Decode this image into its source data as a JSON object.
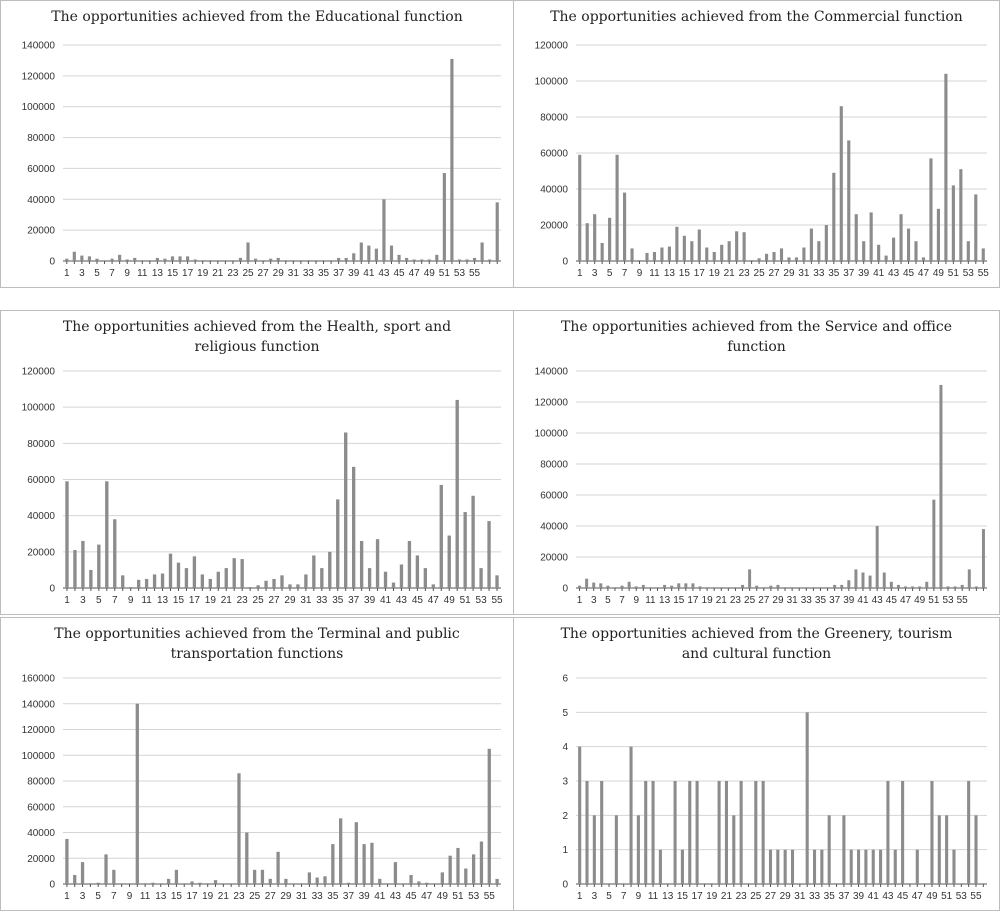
{
  "colors": {
    "bar": "#8c8c8c",
    "grid": "#d4d4d4",
    "axis": "#555555",
    "text": "#222222"
  },
  "chart_data": [
    {
      "type": "bar",
      "title": "The opportunities achieved from the Educational function",
      "ylim": [
        0,
        140000
      ],
      "yticks": [
        "0",
        "20000",
        "40000",
        "60000",
        "80000",
        "100000",
        "120000",
        "140000"
      ],
      "xticks": [
        "1",
        "3",
        "5",
        "7",
        "9",
        "11",
        "13",
        "15",
        "17",
        "19",
        "21",
        "23",
        "25",
        "27",
        "29",
        "31",
        "33",
        "35",
        "37",
        "39",
        "41",
        "43",
        "45",
        "47",
        "49",
        "51",
        "53",
        "55"
      ],
      "values": [
        1500,
        6000,
        3500,
        3000,
        1500,
        500,
        1500,
        4000,
        1000,
        2000,
        500,
        500,
        2000,
        1500,
        3000,
        3000,
        3000,
        1000,
        500,
        500,
        500,
        500,
        500,
        2000,
        12000,
        1500,
        500,
        1500,
        2000,
        500,
        500,
        500,
        500,
        500,
        500,
        500,
        2000,
        2000,
        5000,
        12000,
        10000,
        8000,
        40000,
        10000,
        4000,
        2000,
        1000,
        1000,
        1000,
        4000,
        57000,
        131000,
        1000,
        1000,
        2000,
        12000,
        1000,
        38000
      ],
      "grid": true
    },
    {
      "type": "bar",
      "title": "The opportunities achieved from the Commercial function",
      "ylim": [
        0,
        120000
      ],
      "yticks": [
        "0",
        "20000",
        "40000",
        "60000",
        "80000",
        "100000",
        "120000"
      ],
      "xticks": [
        "1",
        "3",
        "5",
        "7",
        "9",
        "11",
        "13",
        "15",
        "17",
        "19",
        "21",
        "23",
        "25",
        "27",
        "29",
        "31",
        "33",
        "35",
        "37",
        "39",
        "41",
        "43",
        "45",
        "47",
        "49",
        "51",
        "53",
        "55"
      ],
      "values": [
        59000,
        21000,
        26000,
        10000,
        24000,
        59000,
        38000,
        7000,
        500,
        4500,
        5000,
        7500,
        8000,
        19000,
        14000,
        11000,
        17500,
        7500,
        5000,
        9000,
        11000,
        16500,
        16000,
        500,
        1500,
        4000,
        5000,
        7000,
        2000,
        2000,
        7500,
        18000,
        11000,
        20000,
        49000,
        86000,
        67000,
        26000,
        11000,
        27000,
        9000,
        3000,
        13000,
        26000,
        18000,
        11000,
        2000,
        57000,
        29000,
        104000,
        42000,
        51000,
        11000,
        37000,
        7000
      ],
      "grid": true
    },
    {
      "type": "bar",
      "title": "The opportunities achieved from the Health, sport and religious function",
      "title_lines": [
        "The opportunities achieved from the Health, sport and",
        "religious function"
      ],
      "ylim": [
        0,
        120000
      ],
      "yticks": [
        "0",
        "20000",
        "40000",
        "60000",
        "80000",
        "100000",
        "120000"
      ],
      "xticks": [
        "1",
        "3",
        "5",
        "7",
        "9",
        "11",
        "13",
        "15",
        "17",
        "19",
        "21",
        "23",
        "25",
        "27",
        "29",
        "31",
        "33",
        "35",
        "37",
        "39",
        "41",
        "43",
        "45",
        "47",
        "49",
        "51",
        "53",
        "55"
      ],
      "values": [
        59000,
        21000,
        26000,
        10000,
        24000,
        59000,
        38000,
        7000,
        500,
        4500,
        5000,
        7500,
        8000,
        19000,
        14000,
        11000,
        17500,
        7500,
        5000,
        9000,
        11000,
        16500,
        16000,
        500,
        1500,
        4000,
        5000,
        7000,
        2000,
        2000,
        7500,
        18000,
        11000,
        20000,
        49000,
        86000,
        67000,
        26000,
        11000,
        27000,
        9000,
        3000,
        13000,
        26000,
        18000,
        11000,
        2000,
        57000,
        29000,
        104000,
        42000,
        51000,
        11000,
        37000,
        7000
      ],
      "grid": true
    },
    {
      "type": "bar",
      "title": "The opportunities achieved from the Service and office function",
      "title_lines": [
        "The opportunities achieved from the Service and office",
        "function"
      ],
      "ylim": [
        0,
        140000
      ],
      "yticks": [
        "0",
        "20000",
        "40000",
        "60000",
        "80000",
        "100000",
        "120000",
        "140000"
      ],
      "xticks": [
        "1",
        "3",
        "5",
        "7",
        "9",
        "11",
        "13",
        "15",
        "17",
        "19",
        "21",
        "23",
        "25",
        "27",
        "29",
        "31",
        "33",
        "35",
        "37",
        "39",
        "41",
        "43",
        "45",
        "47",
        "49",
        "51",
        "53",
        "55"
      ],
      "values": [
        1500,
        6000,
        3500,
        3000,
        1500,
        500,
        1500,
        4000,
        1000,
        2000,
        500,
        500,
        2000,
        1500,
        3000,
        3000,
        3000,
        1000,
        500,
        500,
        500,
        500,
        500,
        2000,
        12000,
        1500,
        500,
        1500,
        2000,
        500,
        500,
        500,
        500,
        500,
        500,
        500,
        2000,
        2000,
        5000,
        12000,
        10000,
        8000,
        40000,
        10000,
        4000,
        2000,
        1000,
        1000,
        1000,
        4000,
        57000,
        131000,
        1000,
        1000,
        2000,
        12000,
        1000,
        38000
      ],
      "grid": true
    },
    {
      "type": "bar",
      "title": "The opportunities achieved from the Terminal and public transportation functions",
      "title_lines": [
        "The opportunities achieved from the Terminal and public",
        "transportation functions"
      ],
      "ylim": [
        0,
        160000
      ],
      "yticks": [
        "0",
        "20000",
        "40000",
        "60000",
        "80000",
        "100000",
        "120000",
        "140000",
        "160000"
      ],
      "xticks": [
        "1",
        "3",
        "5",
        "7",
        "9",
        "11",
        "13",
        "15",
        "17",
        "19",
        "21",
        "23",
        "25",
        "27",
        "29",
        "31",
        "33",
        "35",
        "37",
        "39",
        "41",
        "43",
        "45",
        "47",
        "49",
        "51",
        "53",
        "55"
      ],
      "values": [
        35000,
        7000,
        17000,
        0,
        1000,
        23000,
        11000,
        0,
        0,
        140000,
        0,
        1000,
        0,
        4000,
        11000,
        0,
        2000,
        1000,
        0,
        3000,
        0,
        0,
        86000,
        40000,
        11000,
        11000,
        4000,
        25000,
        4000,
        0,
        0,
        9000,
        5000,
        6000,
        31000,
        51000,
        1000,
        48000,
        31000,
        32000,
        4000,
        0,
        17000,
        0,
        7000,
        2000,
        1000,
        0,
        9000,
        22000,
        28000,
        12000,
        23000,
        33000,
        105000,
        4000
      ],
      "grid": true
    },
    {
      "type": "bar",
      "title": "The opportunities achieved from the Greenery, tourism and cultural function",
      "title_lines": [
        "The opportunities achieved from the Greenery, tourism",
        "and cultural function"
      ],
      "ylim": [
        0,
        6
      ],
      "yticks": [
        "0",
        "1",
        "2",
        "3",
        "4",
        "5",
        "6"
      ],
      "xticks": [
        "1",
        "3",
        "5",
        "7",
        "9",
        "11",
        "13",
        "15",
        "17",
        "19",
        "21",
        "23",
        "25",
        "27",
        "29",
        "31",
        "33",
        "35",
        "37",
        "39",
        "41",
        "43",
        "45",
        "47",
        "49",
        "51",
        "53",
        "55"
      ],
      "values": [
        4,
        3,
        2,
        3,
        0,
        2,
        0,
        4,
        2,
        3,
        3,
        1,
        0,
        3,
        1,
        3,
        3,
        0,
        0,
        3,
        3,
        2,
        3,
        0,
        3,
        3,
        1,
        1,
        1,
        1,
        0,
        5,
        1,
        1,
        2,
        0,
        2,
        1,
        1,
        1,
        1,
        1,
        3,
        1,
        3,
        0,
        1,
        0,
        3,
        2,
        2,
        1,
        0,
        3,
        2,
        0
      ],
      "grid": true
    }
  ]
}
